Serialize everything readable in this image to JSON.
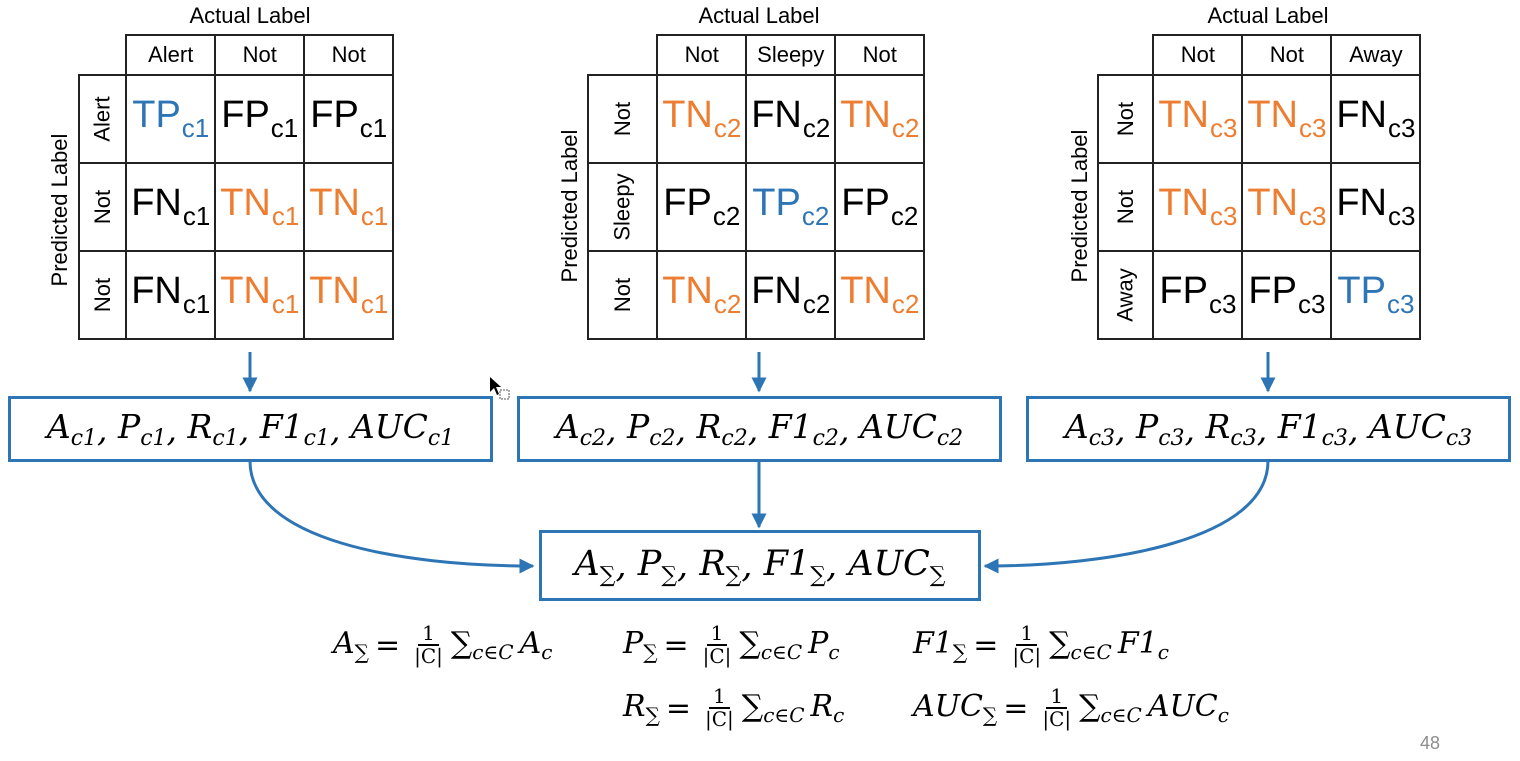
{
  "matrices": [
    {
      "actual_title": "Actual Label",
      "predicted_title": "Predicted Label",
      "col_headers": [
        "Alert",
        "Not",
        "Not"
      ],
      "row_headers": [
        "Alert",
        "Not",
        "Not"
      ],
      "cells": [
        [
          {
            "main": "TP",
            "sub": "c1",
            "color": "#2E75B6"
          },
          {
            "main": "FP",
            "sub": "c1",
            "color": "#000000"
          },
          {
            "main": "FP",
            "sub": "c1",
            "color": "#000000"
          }
        ],
        [
          {
            "main": "FN",
            "sub": "c1",
            "color": "#000000"
          },
          {
            "main": "TN",
            "sub": "c1",
            "color": "#ED7D31"
          },
          {
            "main": "TN",
            "sub": "c1",
            "color": "#ED7D31"
          }
        ],
        [
          {
            "main": "FN",
            "sub": "c1",
            "color": "#000000"
          },
          {
            "main": "TN",
            "sub": "c1",
            "color": "#ED7D31"
          },
          {
            "main": "TN",
            "sub": "c1",
            "color": "#ED7D31"
          }
        ]
      ]
    },
    {
      "actual_title": "Actual Label",
      "predicted_title": "Predicted Label",
      "col_headers": [
        "Not",
        "Sleepy",
        "Not"
      ],
      "row_headers": [
        "Not",
        "Sleepy",
        "Not"
      ],
      "cells": [
        [
          {
            "main": "TN",
            "sub": "c2",
            "color": "#ED7D31"
          },
          {
            "main": "FN",
            "sub": "c2",
            "color": "#000000"
          },
          {
            "main": "TN",
            "sub": "c2",
            "color": "#ED7D31"
          }
        ],
        [
          {
            "main": "FP",
            "sub": "c2",
            "color": "#000000"
          },
          {
            "main": "TP",
            "sub": "c2",
            "color": "#2E75B6"
          },
          {
            "main": "FP",
            "sub": "c2",
            "color": "#000000"
          }
        ],
        [
          {
            "main": "TN",
            "sub": "c2",
            "color": "#ED7D31"
          },
          {
            "main": "FN",
            "sub": "c2",
            "color": "#000000"
          },
          {
            "main": "TN",
            "sub": "c2",
            "color": "#ED7D31"
          }
        ]
      ]
    },
    {
      "actual_title": "Actual Label",
      "predicted_title": "Predicted Label",
      "col_headers": [
        "Not",
        "Not",
        "Away"
      ],
      "row_headers": [
        "Not",
        "Not",
        "Away"
      ],
      "cells": [
        [
          {
            "main": "TN",
            "sub": "c3",
            "color": "#ED7D31"
          },
          {
            "main": "TN",
            "sub": "c3",
            "color": "#ED7D31"
          },
          {
            "main": "FN",
            "sub": "c3",
            "color": "#000000"
          }
        ],
        [
          {
            "main": "TN",
            "sub": "c3",
            "color": "#ED7D31"
          },
          {
            "main": "TN",
            "sub": "c3",
            "color": "#ED7D31"
          },
          {
            "main": "FN",
            "sub": "c3",
            "color": "#000000"
          }
        ],
        [
          {
            "main": "FP",
            "sub": "c3",
            "color": "#000000"
          },
          {
            "main": "FP",
            "sub": "c3",
            "color": "#000000"
          },
          {
            "main": "TP",
            "sub": "c3",
            "color": "#2E75B6"
          }
        ]
      ]
    }
  ],
  "metric_boxes": [
    {
      "terms": [
        [
          "A",
          "c1"
        ],
        [
          "P",
          "c1"
        ],
        [
          "R",
          "c1"
        ],
        [
          "F1",
          "c1"
        ],
        [
          "AUC",
          "c1"
        ]
      ]
    },
    {
      "terms": [
        [
          "A",
          "c2"
        ],
        [
          "P",
          "c2"
        ],
        [
          "R",
          "c2"
        ],
        [
          "F1",
          "c2"
        ],
        [
          "AUC",
          "c2"
        ]
      ]
    },
    {
      "terms": [
        [
          "A",
          "c3"
        ],
        [
          "P",
          "c3"
        ],
        [
          "R",
          "c3"
        ],
        [
          "F1",
          "c3"
        ],
        [
          "AUC",
          "c3"
        ]
      ]
    }
  ],
  "aggregate_box": {
    "terms": [
      [
        "A",
        "∑"
      ],
      [
        "P",
        "∑"
      ],
      [
        "R",
        "∑"
      ],
      [
        "F1",
        "∑"
      ],
      [
        "AUC",
        "∑"
      ]
    ]
  },
  "formulas": {
    "A": {
      "lhs": "A",
      "lhs_sub": "∑",
      "eq": "=",
      "num": "1",
      "den": "|C|",
      "sum": "∑",
      "sum_sub": "c∈C",
      "rhs": "A",
      "rhs_sub": "c"
    },
    "P": {
      "lhs": "P",
      "lhs_sub": "∑",
      "eq": "=",
      "num": "1",
      "den": "|C|",
      "sum": "∑",
      "sum_sub": "c∈C",
      "rhs": "P",
      "rhs_sub": "c"
    },
    "F1": {
      "lhs": "F1",
      "lhs_sub": "∑",
      "eq": "=",
      "num": "1",
      "den": "|C|",
      "sum": "∑",
      "sum_sub": "c∈C",
      "rhs": "F1",
      "rhs_sub": "c"
    },
    "R": {
      "lhs": "R",
      "lhs_sub": "∑",
      "eq": "=",
      "num": "1",
      "den": "|C|",
      "sum": "∑",
      "sum_sub": "c∈C",
      "rhs": "R",
      "rhs_sub": "c"
    },
    "AUC": {
      "lhs": "AUC",
      "lhs_sub": "∑",
      "eq": "=",
      "num": "1",
      "den": "|C|",
      "sum": "∑",
      "sum_sub": "c∈C",
      "rhs": "AUC",
      "rhs_sub": "c"
    }
  },
  "page_number": "48",
  "colors": {
    "accent": "#2E75B6",
    "tn": "#ED7D31",
    "tp": "#2E75B6",
    "text": "#000000"
  }
}
